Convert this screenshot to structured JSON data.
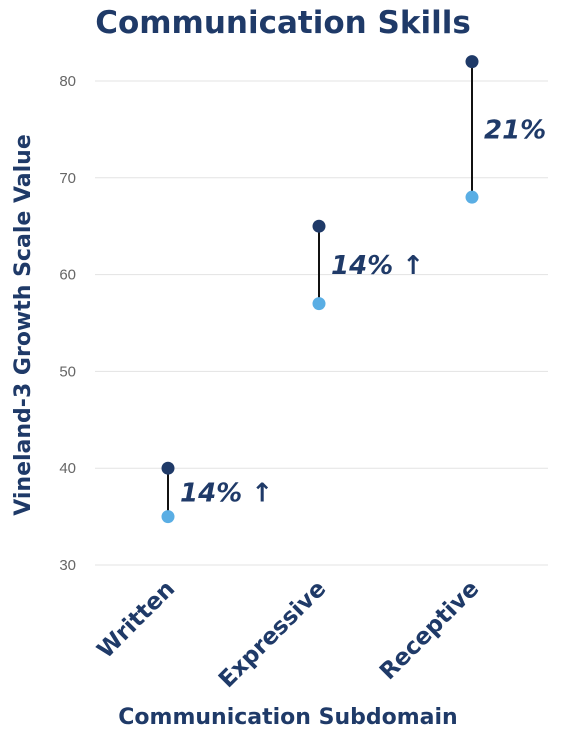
{
  "chart_data": {
    "type": "scatter",
    "title": "Communication Skills",
    "xlabel": "Communication Subdomain",
    "ylabel": "Vineland-3 Growth Scale Value",
    "categories": [
      "Written",
      "Expressive",
      "Receptive"
    ],
    "series": [
      {
        "values": [
          40,
          65,
          82
        ],
        "color": "#1f3a68"
      },
      {
        "values": [
          35,
          57,
          68
        ],
        "color": "#5aaee4"
      }
    ],
    "annotations": [
      "14% ↑",
      "14% ↑",
      "21%"
    ],
    "ylim": [
      30,
      82
    ],
    "yticks": [
      30,
      40,
      50,
      60,
      70,
      80
    ],
    "grid": true,
    "legend": "none"
  }
}
